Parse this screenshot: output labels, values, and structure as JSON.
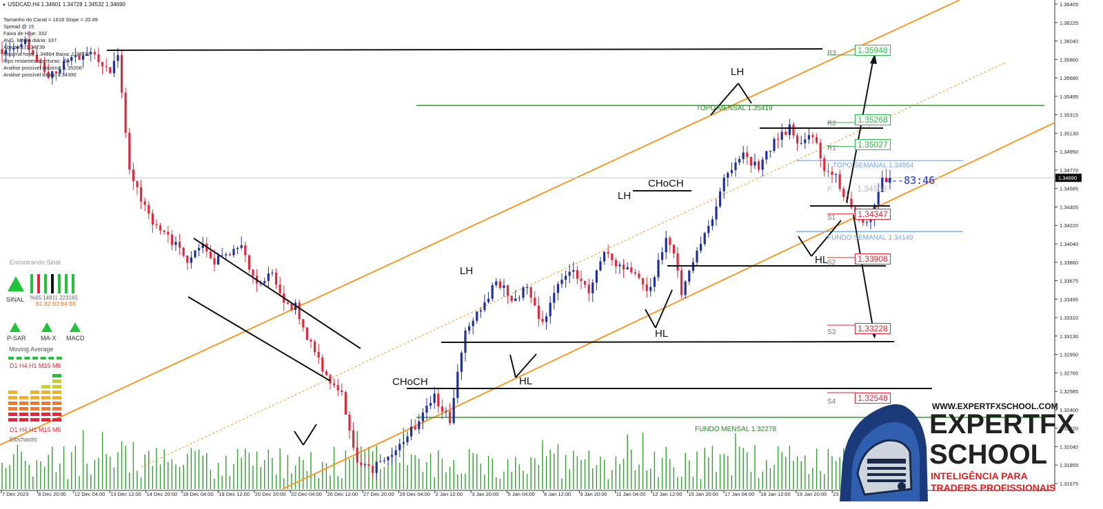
{
  "header": {
    "symbol_line": "USDCAD,H4  1.34601 1.34728 1.34532 1.34690"
  },
  "stats": [
    "Tamanho do Canal = 1618 Slope = 20.49",
    "Spread @ 15",
    "Faixa de Hoje: 332",
    "AVG. Média diária: 337",
    "Abertura: 1.34739",
    "Máxima hoje: 1.34864 Baixa: 1.34532",
    "Pips restantes aberturas: -54",
    "Análise possível máxima: 1.35206",
    "Análise possível baixa: 1.34390"
  ],
  "left_panel": {
    "finding_signal": "Encontrando Sinal",
    "signal_label": "SINAL",
    "sinal_nums": "%65  14811  223165",
    "b_labels": "B1 B2 B3 B4 B5",
    "psar": "P-SAR",
    "max": "MA-X",
    "macd": "MACD",
    "moving_average": "Moving Average",
    "tf_labels_1": "D1 H4 H1 M15  M5",
    "tf_labels_2": "D1 H4 H1 M15  M5",
    "stochastic": "Stochastic"
  },
  "price_axis": {
    "ticks": [
      "1.36405",
      "1.36225",
      "1.36040",
      "1.35860",
      "1.35680",
      "1.35495",
      "1.35315",
      "1.35130",
      "1.34950",
      "1.34770",
      "1.34585",
      "1.34405",
      "1.34220",
      "1.34040",
      "1.33860",
      "1.33675",
      "1.33495",
      "1.33310",
      "1.33130",
      "1.32950",
      "1.32765",
      "1.32585",
      "1.32400",
      "1.32220",
      "1.32040",
      "1.31855",
      "1.31675"
    ],
    "current_price": "1.34690"
  },
  "time_axis": {
    "ticks": [
      "7 Dec 2023",
      "8 Dec 20:00",
      "12 Dec 04:00",
      "13 Dec 12:00",
      "14 Dec 20:00",
      "18 Dec 04:00",
      "19 Dec 12:00",
      "20 Dec 20:00",
      "22 Dec 04:00",
      "26 Dec 12:00",
      "27 Dec 20:00",
      "29 Dec 04:00",
      "2 Jan 12:00",
      "3 Jan 20:00",
      "5 Jan 04:00",
      "8 Jan 12:00",
      "9 Jan 20:00",
      "11 Jan 04:00",
      "12 Jan 12:00",
      "15 Jan 20:00",
      "17 Jan 04:00",
      "18 Jan 12:00",
      "19 Jan 20:00",
      "23 Jan 04:00"
    ]
  },
  "levels": {
    "r3": {
      "tag": "R3",
      "value": "1.35948"
    },
    "r2": {
      "tag": "R2",
      "value": "1.35268"
    },
    "r1": {
      "tag": "R1",
      "value": "1.35027"
    },
    "p": {
      "tag": "P",
      "value": "1.34568"
    },
    "s1": {
      "tag": "S1",
      "value": "1.34347"
    },
    "s2": {
      "tag": "S2",
      "value": "1.33908"
    },
    "s3": {
      "tag": "S3",
      "value": "1.33228"
    },
    "s4": {
      "tag": "S4",
      "value": "1.32548"
    }
  },
  "level_labels": {
    "topo_mensal": "TOPO MENSAL  1.35419",
    "fundo_mensal": "FUNDO MENSAL  1.32278",
    "topo_semanal": "TOPO SEMANAL  1.34864",
    "fundo_semanal": "FUNDO SEMANAL  1.34149",
    "countdown": "<--83:46"
  },
  "annotations": {
    "lh1": "LH",
    "lh2": "LH",
    "lh3": "LH",
    "choch1": "CHoCH",
    "choch2": "CHoCH",
    "hl1": "HL",
    "hl2": "HL",
    "hl3": "HL"
  },
  "brand": {
    "url": "WWW.EXPERTFXSCHOOL.COM",
    "name1": "EXPERTFX",
    "name2": "SCHOOL",
    "tag1": "INTELIGÊNCIA PARA",
    "tag2": "TRADERS PROFISSIONAIS"
  },
  "colors": {
    "bull": "#1e2fa0",
    "bear": "#e8263a",
    "channel": "#f39a2b",
    "monthly": "#1f8f1f",
    "weekly": "#7aa7e8",
    "resistance": "#2fb84a",
    "support": "#d92b35",
    "brand_red": "#e02020"
  },
  "chart_data": {
    "type": "candlestick",
    "symbol": "USDCAD",
    "timeframe": "H4",
    "ylim": [
      1.3157,
      1.3646
    ],
    "ohlc_last": {
      "open": 1.34601,
      "high": 1.34728,
      "low": 1.34532,
      "close": 1.3469
    },
    "anchors": [
      [
        0,
        1.3595
      ],
      [
        6,
        1.3605
      ],
      [
        12,
        1.3572
      ],
      [
        18,
        1.359
      ],
      [
        24,
        1.3595
      ],
      [
        28,
        1.3575
      ],
      [
        30,
        1.359
      ],
      [
        33,
        1.348
      ],
      [
        36,
        1.3445
      ],
      [
        40,
        1.342
      ],
      [
        44,
        1.3405
      ],
      [
        48,
        1.3385
      ],
      [
        52,
        1.3405
      ],
      [
        55,
        1.3385
      ],
      [
        58,
        1.3392
      ],
      [
        62,
        1.34
      ],
      [
        66,
        1.336
      ],
      [
        70,
        1.3375
      ],
      [
        73,
        1.334
      ],
      [
        76,
        1.334
      ],
      [
        80,
        1.33
      ],
      [
        84,
        1.3268
      ],
      [
        88,
        1.325
      ],
      [
        92,
        1.318
      ],
      [
        96,
        1.3175
      ],
      [
        100,
        1.319
      ],
      [
        104,
        1.3205
      ],
      [
        108,
        1.3225
      ],
      [
        112,
        1.3248
      ],
      [
        116,
        1.3225
      ],
      [
        120,
        1.3315
      ],
      [
        124,
        1.3335
      ],
      [
        128,
        1.3368
      ],
      [
        132,
        1.3345
      ],
      [
        136,
        1.3358
      ],
      [
        140,
        1.332
      ],
      [
        144,
        1.3365
      ],
      [
        148,
        1.3372
      ],
      [
        152,
        1.3355
      ],
      [
        156,
        1.3395
      ],
      [
        160,
        1.338
      ],
      [
        164,
        1.3372
      ],
      [
        168,
        1.3355
      ],
      [
        172,
        1.341
      ],
      [
        174,
        1.3395
      ],
      [
        176,
        1.3352
      ],
      [
        180,
        1.3395
      ],
      [
        184,
        1.3425
      ],
      [
        188,
        1.3478
      ],
      [
        192,
        1.349
      ],
      [
        196,
        1.348
      ],
      [
        200,
        1.3505
      ],
      [
        204,
        1.352
      ],
      [
        207,
        1.35
      ],
      [
        210,
        1.3512
      ],
      [
        213,
        1.3478
      ],
      [
        216,
        1.347
      ],
      [
        219,
        1.3445
      ],
      [
        222,
        1.3425
      ],
      [
        225,
        1.343
      ],
      [
        228,
        1.3465
      ],
      [
        230,
        1.3469
      ]
    ],
    "levels": {
      "R3": 1.35948,
      "R2": 1.35268,
      "R1": 1.35027,
      "P": 1.34568,
      "S1": 1.34347,
      "S2": 1.33908,
      "S3": 1.33228,
      "S4": 1.32548,
      "monthly_high": 1.35419,
      "monthly_low": 1.32278,
      "weekly_high": 1.34864,
      "weekly_low": 1.34149
    }
  }
}
